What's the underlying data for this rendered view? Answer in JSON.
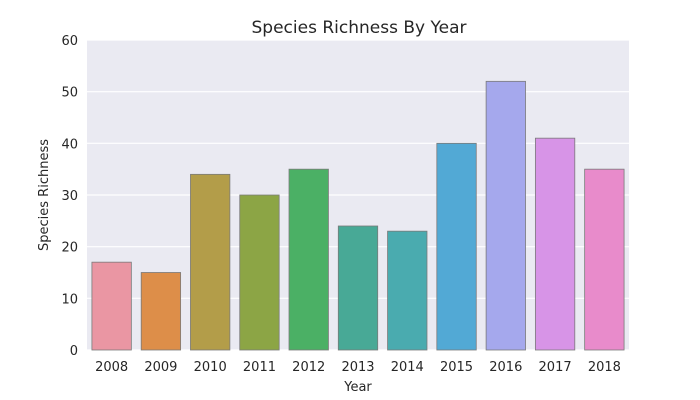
{
  "chart_data": {
    "type": "bar",
    "title": "Species Richness By Year",
    "xlabel": "Year",
    "ylabel": "Species Richness",
    "categories": [
      "2008",
      "2009",
      "2010",
      "2011",
      "2012",
      "2013",
      "2014",
      "2015",
      "2016",
      "2017",
      "2018"
    ],
    "values": [
      17,
      15,
      34,
      30,
      35,
      24,
      23,
      40,
      52,
      41,
      35
    ],
    "ylim": [
      0,
      60
    ],
    "yticks": [
      "0",
      "10",
      "20",
      "30",
      "40",
      "50",
      "60"
    ],
    "grid": true,
    "colors": [
      "#ea96a3",
      "#dd8e49",
      "#b39d49",
      "#8ca545",
      "#4bb065",
      "#48a996",
      "#4aabaf",
      "#52a9d5",
      "#a5a8ed",
      "#d794e7",
      "#e88bcb"
    ],
    "background_color": "#eaeaf2",
    "edge_color": "#7a7a7a"
  }
}
